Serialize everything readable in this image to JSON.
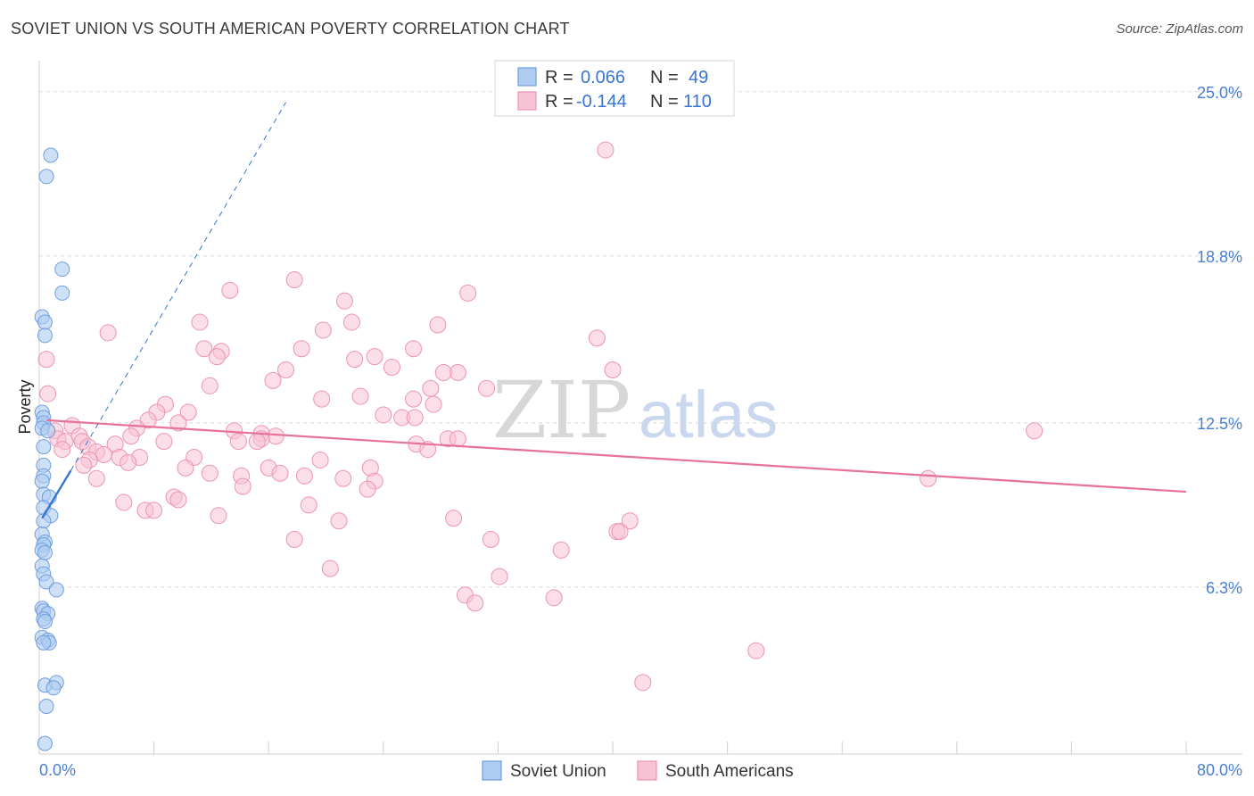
{
  "header": {
    "title": "SOVIET UNION VS SOUTH AMERICAN POVERTY CORRELATION CHART",
    "source": "Source: ZipAtlas.com"
  },
  "watermark": {
    "zip": "ZIP",
    "atlas": "atlas"
  },
  "colors": {
    "soviet_fill": "#aecbf0",
    "soviet_stroke": "#6f9ee0",
    "soviet_line": "#3575d3",
    "sa_fill": "#f7c2d3",
    "sa_stroke": "#ec94b2",
    "sa_line": "#e8719a",
    "tick_label": "#4a7fd0",
    "grid": "#d8d8d8"
  },
  "legend": {
    "rows": [
      {
        "r_label": "R =",
        "r_value": "0.066",
        "n_label": "N =",
        "n_value": "49"
      },
      {
        "r_label": "R =",
        "r_value": "-0.144",
        "n_label": "N =",
        "n_value": "110"
      }
    ]
  },
  "chart_data": {
    "type": "scatter",
    "title": "SOVIET UNION VS SOUTH AMERICAN POVERTY CORRELATION CHART",
    "xlabel": "",
    "ylabel": "Poverty",
    "xlim": [
      0,
      80
    ],
    "ylim": [
      0,
      25.8
    ],
    "x_tick_labels": [
      "0.0%",
      "80.0%"
    ],
    "y_tick_labels": [
      "6.3%",
      "12.5%",
      "18.8%",
      "25.0%"
    ],
    "y_ticks": [
      6.3,
      12.5,
      18.8,
      25.0
    ],
    "grid": true,
    "legend_position": "top-center",
    "series": [
      {
        "name": "Soviet Union",
        "R": 0.066,
        "N": 49,
        "trend": {
          "x": [
            0.2,
            2.2
          ],
          "y": [
            8.9,
            10.7
          ]
        },
        "trend_extended": {
          "x": [
            2.2,
            17.2
          ],
          "y": [
            10.7,
            24.6
          ]
        },
        "points": [
          {
            "x": 0.8,
            "y": 22.6
          },
          {
            "x": 0.5,
            "y": 21.8
          },
          {
            "x": 1.6,
            "y": 18.3
          },
          {
            "x": 1.6,
            "y": 17.4
          },
          {
            "x": 0.2,
            "y": 16.5
          },
          {
            "x": 0.4,
            "y": 16.3
          },
          {
            "x": 0.4,
            "y": 15.8
          },
          {
            "x": 0.2,
            "y": 12.9
          },
          {
            "x": 0.3,
            "y": 12.7
          },
          {
            "x": 0.3,
            "y": 12.5
          },
          {
            "x": 0.2,
            "y": 12.3
          },
          {
            "x": 0.6,
            "y": 12.2
          },
          {
            "x": 0.3,
            "y": 11.6
          },
          {
            "x": 0.3,
            "y": 10.9
          },
          {
            "x": 0.3,
            "y": 10.5
          },
          {
            "x": 0.2,
            "y": 10.3
          },
          {
            "x": 0.3,
            "y": 9.8
          },
          {
            "x": 0.7,
            "y": 9.7
          },
          {
            "x": 0.3,
            "y": 9.3
          },
          {
            "x": 0.8,
            "y": 9.0
          },
          {
            "x": 0.3,
            "y": 8.8
          },
          {
            "x": 0.2,
            "y": 8.3
          },
          {
            "x": 0.4,
            "y": 8.0
          },
          {
            "x": 0.3,
            "y": 7.9
          },
          {
            "x": 0.2,
            "y": 7.7
          },
          {
            "x": 0.4,
            "y": 7.6
          },
          {
            "x": 0.2,
            "y": 7.1
          },
          {
            "x": 0.3,
            "y": 6.8
          },
          {
            "x": 0.5,
            "y": 6.5
          },
          {
            "x": 1.2,
            "y": 6.2
          },
          {
            "x": 0.2,
            "y": 5.5
          },
          {
            "x": 0.3,
            "y": 5.4
          },
          {
            "x": 0.6,
            "y": 5.3
          },
          {
            "x": 0.3,
            "y": 5.1
          },
          {
            "x": 0.4,
            "y": 5.0
          },
          {
            "x": 0.2,
            "y": 4.4
          },
          {
            "x": 0.6,
            "y": 4.3
          },
          {
            "x": 0.7,
            "y": 4.2
          },
          {
            "x": 0.3,
            "y": 4.2
          },
          {
            "x": 0.4,
            "y": 2.6
          },
          {
            "x": 1.2,
            "y": 2.7
          },
          {
            "x": 1.0,
            "y": 2.5
          },
          {
            "x": 0.5,
            "y": 1.8
          },
          {
            "x": 0.4,
            "y": 0.4
          }
        ]
      },
      {
        "name": "South Americans",
        "R": -0.144,
        "N": 110,
        "trend": {
          "x": [
            0.5,
            80
          ],
          "y": [
            12.6,
            9.9
          ]
        },
        "points": [
          {
            "x": 39.5,
            "y": 22.8
          },
          {
            "x": 17.8,
            "y": 17.9
          },
          {
            "x": 13.3,
            "y": 17.5
          },
          {
            "x": 29.9,
            "y": 17.4
          },
          {
            "x": 21.3,
            "y": 17.1
          },
          {
            "x": 11.2,
            "y": 16.3
          },
          {
            "x": 21.8,
            "y": 16.3
          },
          {
            "x": 27.8,
            "y": 16.2
          },
          {
            "x": 19.8,
            "y": 16.0
          },
          {
            "x": 4.8,
            "y": 15.9
          },
          {
            "x": 38.9,
            "y": 15.7
          },
          {
            "x": 18.3,
            "y": 15.3
          },
          {
            "x": 26.1,
            "y": 15.3
          },
          {
            "x": 11.5,
            "y": 15.3
          },
          {
            "x": 12.7,
            "y": 15.2
          },
          {
            "x": 12.4,
            "y": 15.0
          },
          {
            "x": 23.4,
            "y": 15.0
          },
          {
            "x": 22.0,
            "y": 14.9
          },
          {
            "x": 0.5,
            "y": 14.9
          },
          {
            "x": 24.6,
            "y": 14.6
          },
          {
            "x": 40.0,
            "y": 14.5
          },
          {
            "x": 17.2,
            "y": 14.5
          },
          {
            "x": 29.2,
            "y": 14.4
          },
          {
            "x": 28.2,
            "y": 14.4
          },
          {
            "x": 16.3,
            "y": 14.1
          },
          {
            "x": 11.9,
            "y": 13.9
          },
          {
            "x": 27.3,
            "y": 13.8
          },
          {
            "x": 31.2,
            "y": 13.8
          },
          {
            "x": 0.6,
            "y": 13.6
          },
          {
            "x": 22.4,
            "y": 13.5
          },
          {
            "x": 19.7,
            "y": 13.4
          },
          {
            "x": 26.1,
            "y": 13.4
          },
          {
            "x": 8.8,
            "y": 13.2
          },
          {
            "x": 27.5,
            "y": 13.2
          },
          {
            "x": 8.2,
            "y": 12.9
          },
          {
            "x": 10.4,
            "y": 12.9
          },
          {
            "x": 24.0,
            "y": 12.8
          },
          {
            "x": 25.3,
            "y": 12.7
          },
          {
            "x": 26.2,
            "y": 12.7
          },
          {
            "x": 7.6,
            "y": 12.6
          },
          {
            "x": 9.7,
            "y": 12.5
          },
          {
            "x": 6.8,
            "y": 12.3
          },
          {
            "x": 2.3,
            "y": 12.4
          },
          {
            "x": 13.6,
            "y": 12.2
          },
          {
            "x": 15.5,
            "y": 12.1
          },
          {
            "x": 69.4,
            "y": 12.2
          },
          {
            "x": 1.1,
            "y": 12.2
          },
          {
            "x": 6.4,
            "y": 12.0
          },
          {
            "x": 2.8,
            "y": 12.0
          },
          {
            "x": 16.5,
            "y": 12.0
          },
          {
            "x": 15.5,
            "y": 11.9
          },
          {
            "x": 1.3,
            "y": 11.9
          },
          {
            "x": 15.2,
            "y": 11.8
          },
          {
            "x": 1.8,
            "y": 11.8
          },
          {
            "x": 3.0,
            "y": 11.8
          },
          {
            "x": 8.7,
            "y": 11.8
          },
          {
            "x": 13.9,
            "y": 11.8
          },
          {
            "x": 28.5,
            "y": 11.9
          },
          {
            "x": 5.3,
            "y": 11.7
          },
          {
            "x": 26.3,
            "y": 11.7
          },
          {
            "x": 29.2,
            "y": 11.9
          },
          {
            "x": 1.6,
            "y": 11.5
          },
          {
            "x": 3.4,
            "y": 11.6
          },
          {
            "x": 4.0,
            "y": 11.4
          },
          {
            "x": 4.5,
            "y": 11.3
          },
          {
            "x": 5.6,
            "y": 11.2
          },
          {
            "x": 7.0,
            "y": 11.2
          },
          {
            "x": 27.1,
            "y": 11.5
          },
          {
            "x": 10.8,
            "y": 11.2
          },
          {
            "x": 3.5,
            "y": 11.1
          },
          {
            "x": 19.6,
            "y": 11.1
          },
          {
            "x": 6.2,
            "y": 11.0
          },
          {
            "x": 3.1,
            "y": 10.9
          },
          {
            "x": 10.2,
            "y": 10.8
          },
          {
            "x": 23.1,
            "y": 10.8
          },
          {
            "x": 16.0,
            "y": 10.8
          },
          {
            "x": 11.9,
            "y": 10.6
          },
          {
            "x": 16.8,
            "y": 10.6
          },
          {
            "x": 18.5,
            "y": 10.5
          },
          {
            "x": 14.1,
            "y": 10.5
          },
          {
            "x": 4.0,
            "y": 10.4
          },
          {
            "x": 21.2,
            "y": 10.4
          },
          {
            "x": 23.4,
            "y": 10.3
          },
          {
            "x": 62.0,
            "y": 10.4
          },
          {
            "x": 14.2,
            "y": 10.1
          },
          {
            "x": 22.9,
            "y": 10.0
          },
          {
            "x": 9.4,
            "y": 9.7
          },
          {
            "x": 9.7,
            "y": 9.6
          },
          {
            "x": 5.9,
            "y": 9.5
          },
          {
            "x": 18.8,
            "y": 9.4
          },
          {
            "x": 7.4,
            "y": 9.2
          },
          {
            "x": 8.0,
            "y": 9.2
          },
          {
            "x": 12.5,
            "y": 9.0
          },
          {
            "x": 28.9,
            "y": 8.9
          },
          {
            "x": 20.9,
            "y": 8.8
          },
          {
            "x": 41.2,
            "y": 8.8
          },
          {
            "x": 40.3,
            "y": 8.4
          },
          {
            "x": 40.5,
            "y": 8.4
          },
          {
            "x": 17.8,
            "y": 8.1
          },
          {
            "x": 31.5,
            "y": 8.1
          },
          {
            "x": 36.4,
            "y": 7.7
          },
          {
            "x": 20.3,
            "y": 7.0
          },
          {
            "x": 32.1,
            "y": 6.7
          },
          {
            "x": 29.7,
            "y": 6.0
          },
          {
            "x": 35.9,
            "y": 5.9
          },
          {
            "x": 30.4,
            "y": 5.7
          },
          {
            "x": 50.0,
            "y": 3.9
          },
          {
            "x": 42.1,
            "y": 2.7
          }
        ]
      }
    ]
  },
  "bottom_legend": [
    {
      "label": "Soviet Union"
    },
    {
      "label": "South Americans"
    }
  ]
}
